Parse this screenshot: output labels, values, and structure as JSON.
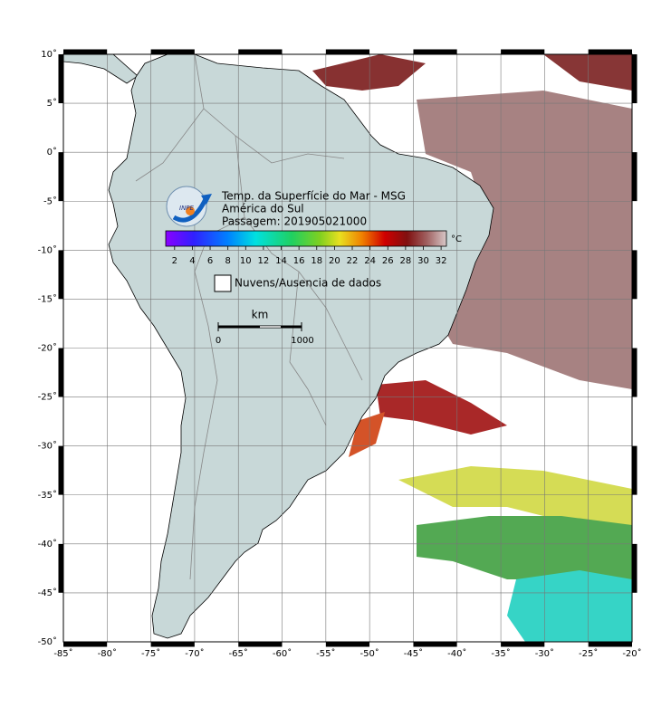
{
  "map": {
    "lon_range": [
      -85,
      -20
    ],
    "lat_range": [
      -50,
      10
    ],
    "lon_ticks": [
      {
        "value": -85,
        "label": "-85˚"
      },
      {
        "value": -80,
        "label": "-80˚"
      },
      {
        "value": -75,
        "label": "-75˚"
      },
      {
        "value": -70,
        "label": "-70˚"
      },
      {
        "value": -65,
        "label": "-65˚"
      },
      {
        "value": -60,
        "label": "-60˚"
      },
      {
        "value": -55,
        "label": "-55˚"
      },
      {
        "value": -50,
        "label": "-50˚"
      },
      {
        "value": -45,
        "label": "-45˚"
      },
      {
        "value": -40,
        "label": "-40˚"
      },
      {
        "value": -35,
        "label": "-35˚"
      },
      {
        "value": -30,
        "label": "-30˚"
      },
      {
        "value": -25,
        "label": "-25˚"
      },
      {
        "value": -20,
        "label": "-20˚"
      }
    ],
    "lat_ticks": [
      {
        "value": 10,
        "label": "10˚"
      },
      {
        "value": 5,
        "label": "5˚"
      },
      {
        "value": 0,
        "label": "0˚"
      },
      {
        "value": -5,
        "label": "-5˚"
      },
      {
        "value": -10,
        "label": "-10˚"
      },
      {
        "value": -15,
        "label": "-15˚"
      },
      {
        "value": -20,
        "label": "-20˚"
      },
      {
        "value": -25,
        "label": "-25˚"
      },
      {
        "value": -30,
        "label": "-30˚"
      },
      {
        "value": -35,
        "label": "-35˚"
      },
      {
        "value": -40,
        "label": "-40˚"
      },
      {
        "value": -45,
        "label": "-45˚"
      },
      {
        "value": -50,
        "label": "-50˚"
      }
    ]
  },
  "logo": "INPE",
  "title_lines": [
    "Temp. da Superfície do Mar - MSG",
    "América do Sul",
    "Passagem: 201905021000"
  ],
  "colorbar": {
    "range": [
      1,
      32.6
    ],
    "ticks": [
      2,
      4,
      6,
      8,
      10,
      12,
      14,
      16,
      18,
      20,
      22,
      24,
      26,
      28,
      30,
      32
    ],
    "unit": "°C"
  },
  "legend": "Nuvens/Ausencia de dados",
  "scale": {
    "unit": "km",
    "labels": [
      "0",
      "1000"
    ]
  }
}
